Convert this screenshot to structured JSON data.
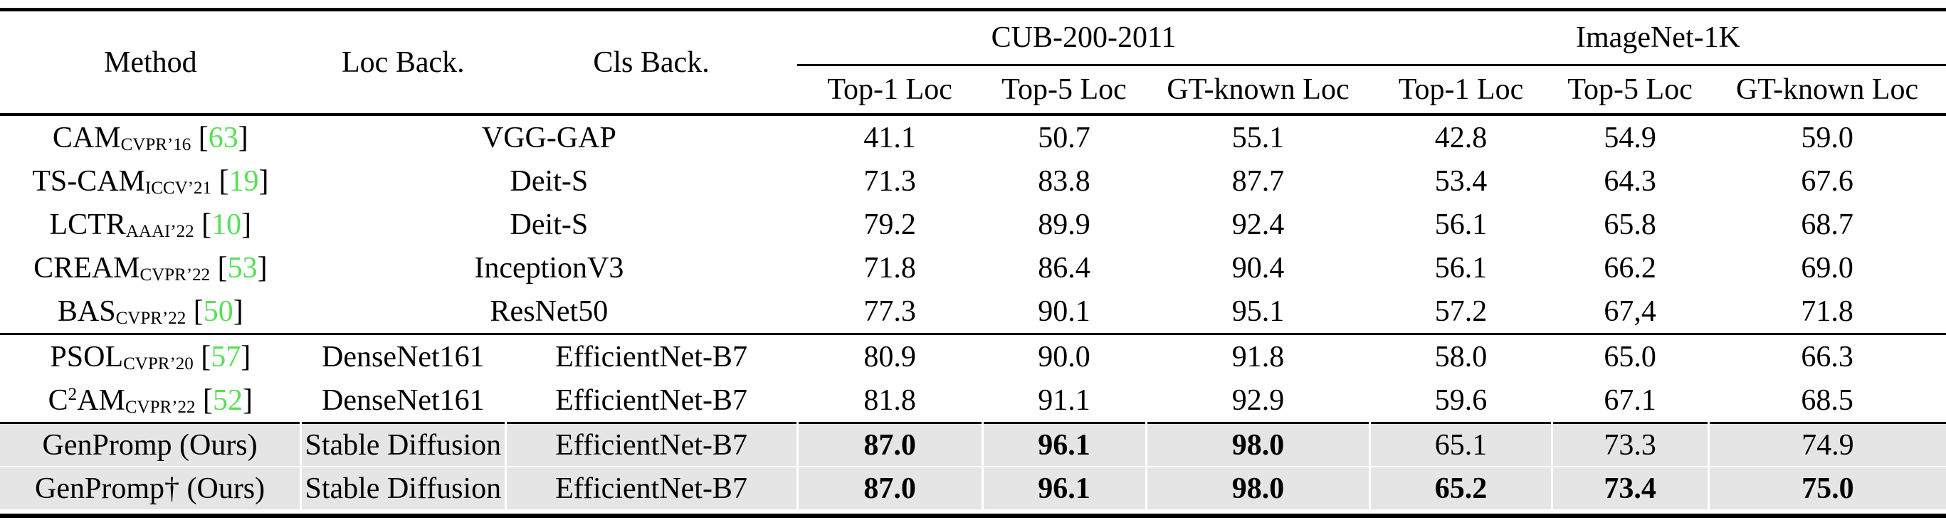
{
  "colors": {
    "citation_green": "#58df58",
    "highlight_gray": "#e5e5e5",
    "rule_black": "#000000"
  },
  "table": {
    "headers": {
      "method": "Method",
      "loc_back": "Loc Back.",
      "cls_back": "Cls Back."
    },
    "groups": [
      {
        "label": "CUB-200-2011",
        "metrics": [
          "Top-1 Loc",
          "Top-5 Loc",
          "GT-known Loc"
        ]
      },
      {
        "label": "ImageNet-1K",
        "metrics": [
          "Top-1 Loc",
          "Top-5 Loc",
          "GT-known Loc"
        ]
      }
    ],
    "rows": [
      {
        "method": {
          "pre": "CAM",
          "sup": "",
          "post": "",
          "venue": "CVPR’16",
          "cite": "63"
        },
        "backbone_span": "VGG-GAP",
        "values": [
          "41.1",
          "50.7",
          "55.1",
          "42.8",
          "54.9",
          "59.0"
        ],
        "bold": [
          0,
          0,
          0,
          0,
          0,
          0
        ],
        "highlight": false,
        "sep_after": false
      },
      {
        "method": {
          "pre": "TS-CAM",
          "sup": "",
          "post": "",
          "venue": "ICCV’21",
          "cite": "19"
        },
        "backbone_span": "Deit-S",
        "values": [
          "71.3",
          "83.8",
          "87.7",
          "53.4",
          "64.3",
          "67.6"
        ],
        "bold": [
          0,
          0,
          0,
          0,
          0,
          0
        ],
        "highlight": false,
        "sep_after": false
      },
      {
        "method": {
          "pre": "LCTR",
          "sup": "",
          "post": "",
          "venue": "AAAI’22",
          "cite": "10"
        },
        "backbone_span": "Deit-S",
        "values": [
          "79.2",
          "89.9",
          "92.4",
          "56.1",
          "65.8",
          "68.7"
        ],
        "bold": [
          0,
          0,
          0,
          0,
          0,
          0
        ],
        "highlight": false,
        "sep_after": false
      },
      {
        "method": {
          "pre": "CREAM",
          "sup": "",
          "post": "",
          "venue": "CVPR’22",
          "cite": "53"
        },
        "backbone_span": "InceptionV3",
        "values": [
          "71.8",
          "86.4",
          "90.4",
          "56.1",
          "66.2",
          "69.0"
        ],
        "bold": [
          0,
          0,
          0,
          0,
          0,
          0
        ],
        "highlight": false,
        "sep_after": false
      },
      {
        "method": {
          "pre": "BAS",
          "sup": "",
          "post": "",
          "venue": "CVPR’22",
          "cite": "50"
        },
        "backbone_span": "ResNet50",
        "values": [
          "77.3",
          "90.1",
          "95.1",
          "57.2",
          "67,4",
          "71.8"
        ],
        "bold": [
          0,
          0,
          0,
          0,
          0,
          0
        ],
        "highlight": false,
        "sep_after": true
      },
      {
        "method": {
          "pre": "PSOL",
          "sup": "",
          "post": "",
          "venue": "CVPR’20",
          "cite": "57"
        },
        "loc_back": "DenseNet161",
        "cls_back": "EfficientNet-B7",
        "values": [
          "80.9",
          "90.0",
          "91.8",
          "58.0",
          "65.0",
          "66.3"
        ],
        "bold": [
          0,
          0,
          0,
          0,
          0,
          0
        ],
        "highlight": false,
        "sep_after": false
      },
      {
        "method": {
          "pre": "C",
          "sup": "2",
          "post": "AM",
          "venue": "CVPR’22",
          "cite": "52"
        },
        "loc_back": "DenseNet161",
        "cls_back": "EfficientNet-B7",
        "values": [
          "81.8",
          "91.1",
          "92.9",
          "59.6",
          "67.1",
          "68.5"
        ],
        "bold": [
          0,
          0,
          0,
          0,
          0,
          0
        ],
        "highlight": false,
        "sep_after": true
      },
      {
        "method": {
          "pre": "GenPromp (Ours)",
          "sup": "",
          "post": "",
          "venue": "",
          "cite": ""
        },
        "loc_back": "Stable Diffusion",
        "cls_back": "EfficientNet-B7",
        "values": [
          "87.0",
          "96.1",
          "98.0",
          "65.1",
          "73.3",
          "74.9"
        ],
        "bold": [
          1,
          1,
          1,
          0,
          0,
          0
        ],
        "highlight": true,
        "sep_after": false
      },
      {
        "method": {
          "pre": "GenPromp† (Ours)",
          "sup": "",
          "post": "",
          "venue": "",
          "cite": ""
        },
        "loc_back": "Stable Diffusion",
        "cls_back": "EfficientNet-B7",
        "values": [
          "87.0",
          "96.1",
          "98.0",
          "65.2",
          "73.4",
          "75.0"
        ],
        "bold": [
          1,
          1,
          1,
          1,
          1,
          1
        ],
        "highlight": true,
        "sep_after": false
      }
    ]
  }
}
